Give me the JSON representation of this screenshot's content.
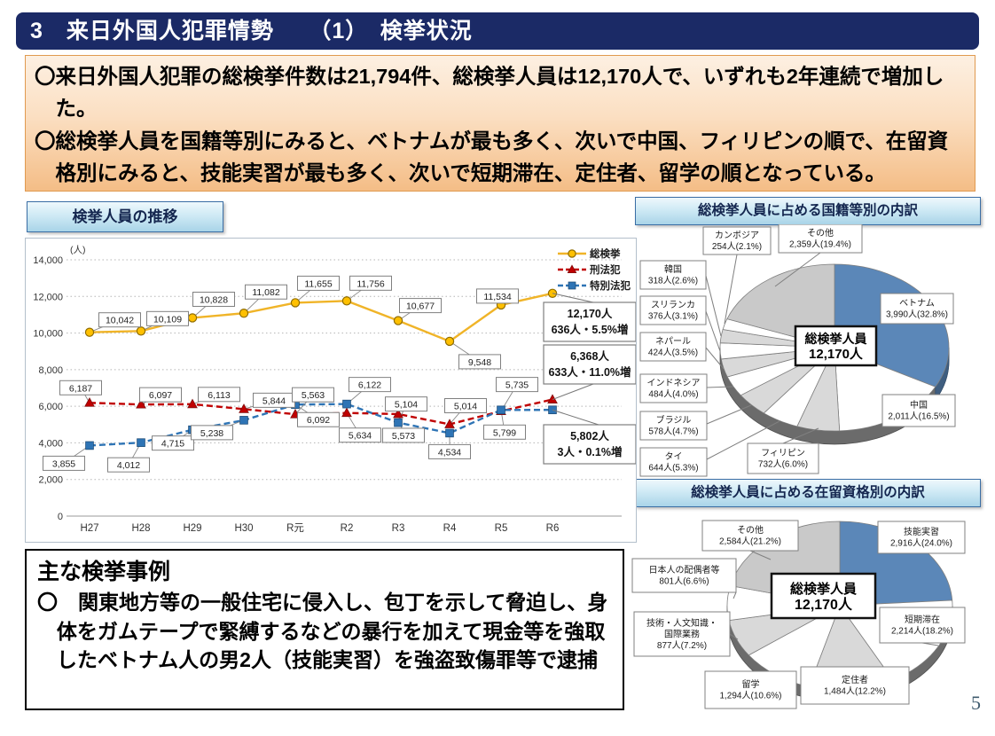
{
  "page": {
    "number": "5"
  },
  "header": {
    "title": "3　来日外国人犯罪情勢　　（1）　検挙状況"
  },
  "summary": {
    "paragraphs": [
      "〇来日外国人犯罪の総検挙件数は21,794件、総検挙人員は12,170人で、いずれも2年連続で増加した。",
      "〇総検挙人員を国籍等別にみると、ベトナムが最も多く、次いで中国、フィリピンの順で、在留資格別にみると、技能実習が最も多く、次いで短期滞在、定住者、留学の順となっている。"
    ]
  },
  "case_box": {
    "title": "主な検挙事例",
    "body": "〇　関東地方等の一般住宅に侵入し、包丁を示して脅迫し、身体をガムテープで緊縛するなどの暴行を加えて現金等を強取したベトナム人の男2人（技能実習）を強盗致傷罪等で逮捕"
  },
  "chart_data": [
    {
      "type": "line",
      "title": "検挙人員の推移",
      "unit_label": "(人)",
      "categories": [
        "H27",
        "H28",
        "H29",
        "H30",
        "R元",
        "R2",
        "R3",
        "R4",
        "R5",
        "R6"
      ],
      "ylim": [
        0,
        14000
      ],
      "ytick_step": 2000,
      "grid": true,
      "legend_position": "top-right",
      "series": [
        {
          "name": "総検挙",
          "marker": "circle",
          "dashed": false,
          "color": "#F0B428",
          "values": [
            10042,
            10109,
            10828,
            11082,
            11655,
            11756,
            10677,
            9548,
            11534,
            12170
          ]
        },
        {
          "name": "刑法犯",
          "marker": "triangle",
          "dashed": true,
          "color": "#C00000",
          "values": [
            6187,
            6097,
            6113,
            5844,
            5563,
            5634,
            5573,
            5014,
            5735,
            6368
          ]
        },
        {
          "name": "特別法犯",
          "marker": "square",
          "dashed": true,
          "color": "#2E74B5",
          "values": [
            3855,
            4012,
            4715,
            5238,
            6092,
            6122,
            5104,
            4534,
            5799,
            5802
          ]
        }
      ],
      "callouts": [
        {
          "series": 0,
          "line1": "12,170人",
          "line2": "636人・5.5%増"
        },
        {
          "series": 1,
          "line1": "6,368人",
          "line2": "633人・11.0%増"
        },
        {
          "series": 2,
          "line1": "5,802人",
          "line2": "3人・0.1%増"
        }
      ]
    },
    {
      "type": "pie",
      "title": "総検挙人員に占める国籍等別の内訳",
      "center_label": {
        "line1": "総検挙人員",
        "line2": "12,170人"
      },
      "slices": [
        {
          "label": "ベトナム",
          "value": 3990,
          "pct": 32.8,
          "value_text": "3,990人(32.8%)",
          "color": "#5B87B8"
        },
        {
          "label": "中国",
          "value": 2011,
          "pct": 16.5,
          "value_text": "2,011人(16.5%)",
          "color": "#FFFFFF"
        },
        {
          "label": "フィリピン",
          "value": 732,
          "pct": 6.0,
          "value_text": "732人(6.0%)",
          "color": "#D9D9D9"
        },
        {
          "label": "タイ",
          "value": 644,
          "pct": 5.3,
          "value_text": "644人(5.3%)",
          "color": "#FFFFFF"
        },
        {
          "label": "ブラジル",
          "value": 578,
          "pct": 4.7,
          "value_text": "578人(4.7%)",
          "color": "#D9D9D9"
        },
        {
          "label": "インドネシア",
          "value": 484,
          "pct": 4.0,
          "value_text": "484人(4.0%)",
          "color": "#FFFFFF"
        },
        {
          "label": "ネパール",
          "value": 424,
          "pct": 3.5,
          "value_text": "424人(3.5%)",
          "color": "#D9D9D9"
        },
        {
          "label": "スリランカ",
          "value": 376,
          "pct": 3.1,
          "value_text": "376人(3.1%)",
          "color": "#FFFFFF"
        },
        {
          "label": "韓国",
          "value": 318,
          "pct": 2.6,
          "value_text": "318人(2.6%)",
          "color": "#D9D9D9"
        },
        {
          "label": "カンボジア",
          "value": 254,
          "pct": 2.1,
          "value_text": "254人(2.1%)",
          "color": "#FFFFFF"
        },
        {
          "label": "その他",
          "value": 2359,
          "pct": 19.4,
          "value_text": "2,359人(19.4%)",
          "color": "#C9C9C9"
        }
      ]
    },
    {
      "type": "pie",
      "title": "総検挙人員に占める在留資格別の内訳",
      "center_label": {
        "line1": "総検挙人員",
        "line2": "12,170人"
      },
      "slices": [
        {
          "label": "技能実習",
          "value": 2916,
          "pct": 24.0,
          "value_text": "2,916人(24.0%)",
          "color": "#5B87B8"
        },
        {
          "label": "短期滞在",
          "value": 2214,
          "pct": 18.2,
          "value_text": "2,214人(18.2%)",
          "color": "#FFFFFF"
        },
        {
          "label": "定住者",
          "value": 1484,
          "pct": 12.2,
          "value_text": "1,484人(12.2%)",
          "color": "#D9D9D9"
        },
        {
          "label": "留学",
          "value": 1294,
          "pct": 10.6,
          "value_text": "1,294人(10.6%)",
          "color": "#FFFFFF"
        },
        {
          "label": "技術・人文知識・国際業務",
          "value": 877,
          "pct": 7.2,
          "value_text": "877人(7.2%)",
          "color": "#D9D9D9"
        },
        {
          "label": "日本人の配偶者等",
          "value": 801,
          "pct": 6.6,
          "value_text": "801人(6.6%)",
          "color": "#FFFFFF"
        },
        {
          "label": "その他",
          "value": 2584,
          "pct": 21.2,
          "value_text": "2,584人(21.2%)",
          "color": "#C9C9C9"
        }
      ]
    }
  ]
}
